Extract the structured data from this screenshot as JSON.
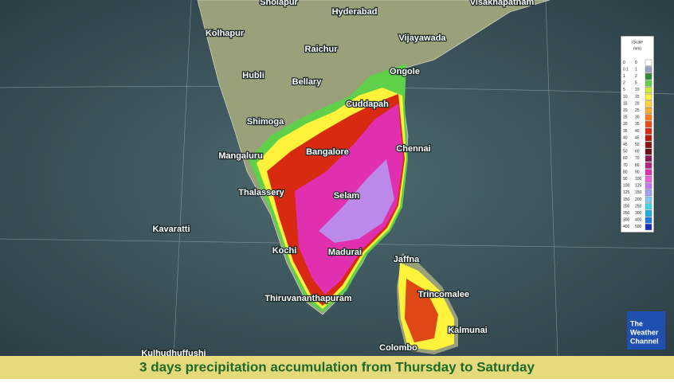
{
  "map": {
    "caption": "3 days precipitation accumulation from Thursday to Saturday",
    "places": [
      "Sholapur",
      "Hyderabad",
      "Visakhapatnam",
      "Kolhapur",
      "Vijayawada",
      "Raichur",
      "Hubli",
      "Bellary",
      "Ongole",
      "Cuddapah",
      "Shimoga",
      "Chennai",
      "Mangaluru",
      "Bangalore",
      "Thalassery",
      "Selam",
      "Kavaratti",
      "Kochi",
      "Madurai",
      "Jaffna",
      "Trincomalee",
      "Thiruvananthapuram",
      "Kalmunai",
      "Colombo",
      "Kulhudhuffushi"
    ],
    "legend": {
      "title": [
        "(Scale",
        "mm)"
      ],
      "rows": [
        {
          "from": 0,
          "to": 0,
          "color": "#ffffff"
        },
        {
          "from": 0.1,
          "to": 1,
          "color": "#9aa0c8"
        },
        {
          "from": 1,
          "to": 2,
          "color": "#2e8b3a"
        },
        {
          "from": 2,
          "to": 5,
          "color": "#5fd04a"
        },
        {
          "from": 5,
          "to": 10,
          "color": "#c8ee3a"
        },
        {
          "from": 10,
          "to": 15,
          "color": "#fff23a"
        },
        {
          "from": 15,
          "to": 20,
          "color": "#ffd23a"
        },
        {
          "from": 20,
          "to": 25,
          "color": "#ffae2e"
        },
        {
          "from": 25,
          "to": 30,
          "color": "#ff7a1e"
        },
        {
          "from": 30,
          "to": 35,
          "color": "#f04a14"
        },
        {
          "from": 35,
          "to": 40,
          "color": "#d82a10"
        },
        {
          "from": 40,
          "to": 45,
          "color": "#b81a10"
        },
        {
          "from": 45,
          "to": 50,
          "color": "#8e1010"
        },
        {
          "from": 50,
          "to": 60,
          "color": "#6a0e18"
        },
        {
          "from": 60,
          "to": 70,
          "color": "#8a1a5a"
        },
        {
          "from": 70,
          "to": 80,
          "color": "#b8207e"
        },
        {
          "from": 80,
          "to": 90,
          "color": "#e030b0"
        },
        {
          "from": 90,
          "to": 100,
          "color": "#f060e0"
        },
        {
          "from": 100,
          "to": 125,
          "color": "#c078f0"
        },
        {
          "from": 125,
          "to": 150,
          "color": "#a0a0f8"
        },
        {
          "from": 150,
          "to": 200,
          "color": "#80c8f8"
        },
        {
          "from": 200,
          "to": 250,
          "color": "#40d8e8"
        },
        {
          "from": 250,
          "to": 300,
          "color": "#20b0e0"
        },
        {
          "from": 300,
          "to": 400,
          "color": "#1a78e0"
        },
        {
          "from": 400,
          "to": 500,
          "color": "#1430c0"
        }
      ]
    },
    "logo": [
      "The",
      "Weather",
      "Channel"
    ]
  }
}
